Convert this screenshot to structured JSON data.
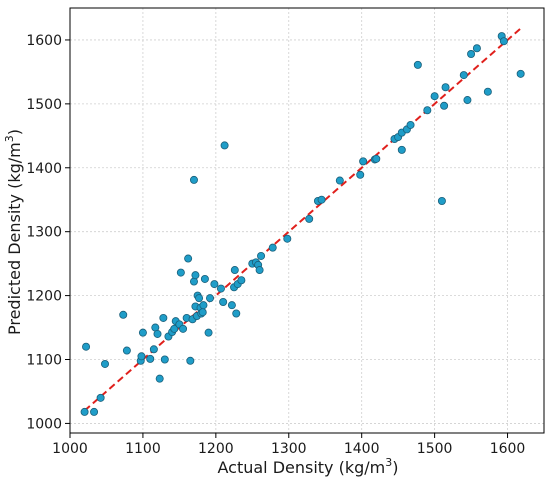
{
  "chart_data": {
    "type": "scatter",
    "xlabel": "Actual Density (kg/m",
    "xlabel_sup": "3",
    "xlabel_close": ")",
    "ylabel": "Predicted Density (kg/m",
    "ylabel_sup": "3",
    "ylabel_close": ")",
    "xlim": [
      1000,
      1650
    ],
    "ylim": [
      985,
      1650
    ],
    "x_ticks": [
      1000,
      1100,
      1200,
      1300,
      1400,
      1500,
      1600
    ],
    "y_ticks": [
      1000,
      1100,
      1200,
      1300,
      1400,
      1500,
      1600
    ],
    "x_tick_labels": [
      "1000",
      "1100",
      "1200",
      "1300",
      "1400",
      "1500",
      "1600"
    ],
    "y_tick_labels": [
      "1000",
      "1100",
      "1200",
      "1300",
      "1400",
      "1500",
      "1600"
    ],
    "grid": true,
    "legend": "none",
    "marker_color": "#1f9dc8",
    "marker_edge_color": "#1a5f7a",
    "fit_line": {
      "x": [
        1020,
        1620
      ],
      "y": [
        1020,
        1620
      ],
      "color": "#e0201c",
      "style": "dashed"
    },
    "points": [
      {
        "x": 1020,
        "y": 1018
      },
      {
        "x": 1022,
        "y": 1120
      },
      {
        "x": 1033,
        "y": 1018
      },
      {
        "x": 1042,
        "y": 1040
      },
      {
        "x": 1048,
        "y": 1093
      },
      {
        "x": 1073,
        "y": 1170
      },
      {
        "x": 1078,
        "y": 1114
      },
      {
        "x": 1097,
        "y": 1098
      },
      {
        "x": 1098,
        "y": 1105
      },
      {
        "x": 1100,
        "y": 1142
      },
      {
        "x": 1110,
        "y": 1101
      },
      {
        "x": 1115,
        "y": 1116
      },
      {
        "x": 1117,
        "y": 1150
      },
      {
        "x": 1120,
        "y": 1140
      },
      {
        "x": 1123,
        "y": 1070
      },
      {
        "x": 1128,
        "y": 1165
      },
      {
        "x": 1130,
        "y": 1100
      },
      {
        "x": 1135,
        "y": 1136
      },
      {
        "x": 1140,
        "y": 1143
      },
      {
        "x": 1143,
        "y": 1148
      },
      {
        "x": 1145,
        "y": 1160
      },
      {
        "x": 1150,
        "y": 1155
      },
      {
        "x": 1152,
        "y": 1236
      },
      {
        "x": 1155,
        "y": 1148
      },
      {
        "x": 1160,
        "y": 1165
      },
      {
        "x": 1162,
        "y": 1258
      },
      {
        "x": 1165,
        "y": 1098
      },
      {
        "x": 1168,
        "y": 1163
      },
      {
        "x": 1170,
        "y": 1222
      },
      {
        "x": 1170,
        "y": 1381
      },
      {
        "x": 1172,
        "y": 1183
      },
      {
        "x": 1172,
        "y": 1232
      },
      {
        "x": 1174,
        "y": 1168
      },
      {
        "x": 1175,
        "y": 1200
      },
      {
        "x": 1177,
        "y": 1196
      },
      {
        "x": 1179,
        "y": 1181
      },
      {
        "x": 1180,
        "y": 1172
      },
      {
        "x": 1182,
        "y": 1174
      },
      {
        "x": 1183,
        "y": 1185
      },
      {
        "x": 1185,
        "y": 1226
      },
      {
        "x": 1190,
        "y": 1142
      },
      {
        "x": 1192,
        "y": 1196
      },
      {
        "x": 1198,
        "y": 1218
      },
      {
        "x": 1207,
        "y": 1211
      },
      {
        "x": 1210,
        "y": 1190
      },
      {
        "x": 1212,
        "y": 1435
      },
      {
        "x": 1222,
        "y": 1185
      },
      {
        "x": 1225,
        "y": 1213
      },
      {
        "x": 1226,
        "y": 1240
      },
      {
        "x": 1228,
        "y": 1172
      },
      {
        "x": 1230,
        "y": 1218
      },
      {
        "x": 1235,
        "y": 1224
      },
      {
        "x": 1250,
        "y": 1250
      },
      {
        "x": 1255,
        "y": 1252
      },
      {
        "x": 1258,
        "y": 1248
      },
      {
        "x": 1260,
        "y": 1240
      },
      {
        "x": 1262,
        "y": 1262
      },
      {
        "x": 1278,
        "y": 1275
      },
      {
        "x": 1298,
        "y": 1289
      },
      {
        "x": 1328,
        "y": 1320
      },
      {
        "x": 1340,
        "y": 1348
      },
      {
        "x": 1345,
        "y": 1350
      },
      {
        "x": 1370,
        "y": 1380
      },
      {
        "x": 1398,
        "y": 1389
      },
      {
        "x": 1402,
        "y": 1410
      },
      {
        "x": 1418,
        "y": 1413
      },
      {
        "x": 1420,
        "y": 1414
      },
      {
        "x": 1445,
        "y": 1445
      },
      {
        "x": 1450,
        "y": 1448
      },
      {
        "x": 1455,
        "y": 1455
      },
      {
        "x": 1455,
        "y": 1428
      },
      {
        "x": 1462,
        "y": 1460
      },
      {
        "x": 1467,
        "y": 1467
      },
      {
        "x": 1477,
        "y": 1561
      },
      {
        "x": 1490,
        "y": 1490
      },
      {
        "x": 1500,
        "y": 1512
      },
      {
        "x": 1510,
        "y": 1348
      },
      {
        "x": 1513,
        "y": 1497
      },
      {
        "x": 1515,
        "y": 1526
      },
      {
        "x": 1540,
        "y": 1545
      },
      {
        "x": 1545,
        "y": 1506
      },
      {
        "x": 1550,
        "y": 1578
      },
      {
        "x": 1558,
        "y": 1587
      },
      {
        "x": 1573,
        "y": 1519
      },
      {
        "x": 1592,
        "y": 1606
      },
      {
        "x": 1595,
        "y": 1598
      },
      {
        "x": 1618,
        "y": 1547
      }
    ]
  }
}
